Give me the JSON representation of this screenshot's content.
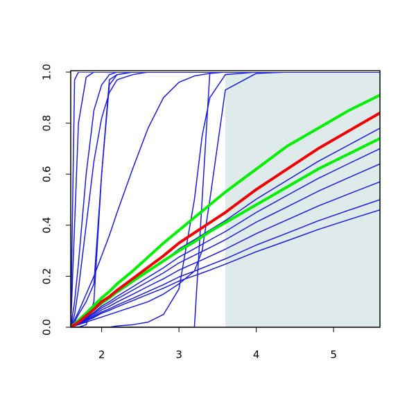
{
  "chart_data": {
    "type": "line",
    "x": [
      1.6,
      1.65,
      1.7,
      1.8,
      1.9,
      2.0,
      2.1,
      2.2,
      2.4,
      2.6,
      2.8,
      3.0,
      3.2,
      3.3,
      3.4,
      3.6,
      4.0,
      4.4,
      4.8,
      5.2,
      5.6
    ],
    "xlim": [
      1.6,
      5.6
    ],
    "xticks": [
      2,
      3,
      4,
      5
    ],
    "ylim": [
      0,
      1
    ],
    "yticks": [
      {
        "value": 0,
        "label": "0.0"
      },
      0.2,
      0.4,
      0.6,
      0.8,
      {
        "value": 1,
        "label": "1.0"
      }
    ],
    "grid": false,
    "shaded_region": {
      "x": [
        3.6,
        5.6
      ],
      "color": "#dfeaea"
    },
    "series": [
      {
        "color": "#1a1adc",
        "line_width": 1.5,
        "values": [
          0,
          0.97,
          1,
          1,
          1,
          1,
          1,
          1,
          1,
          1,
          1,
          1,
          1,
          1,
          1,
          1,
          1,
          1,
          1,
          1,
          1
        ]
      },
      {
        "color": "#1a1adc",
        "line_width": 1.5,
        "values": [
          0,
          0.4,
          0.8,
          0.98,
          1,
          1,
          1,
          1,
          1,
          1,
          1,
          1,
          1,
          1,
          1,
          1,
          1,
          1,
          1,
          1,
          1
        ]
      },
      {
        "color": "#1a1adc",
        "line_width": 1.5,
        "values": [
          0,
          0.1,
          0.25,
          0.6,
          0.85,
          0.95,
          0.99,
          1,
          1,
          1,
          1,
          1,
          1,
          1,
          1,
          1,
          1,
          1,
          1,
          1,
          1
        ]
      },
      {
        "color": "#1a1adc",
        "line_width": 1.5,
        "values": [
          0,
          0.05,
          0.15,
          0.4,
          0.65,
          0.82,
          0.92,
          0.97,
          0.99,
          1,
          1,
          1,
          1,
          1,
          1,
          1,
          1,
          1,
          1,
          1,
          1
        ]
      },
      {
        "color": "#1a1adc",
        "line_width": 1.5,
        "values": [
          0,
          0.02,
          0.05,
          0.1,
          0.17,
          0.6,
          0.97,
          0.99,
          1,
          1,
          1,
          1,
          1,
          1,
          1,
          1,
          1,
          1,
          1,
          1,
          1
        ]
      },
      {
        "color": "#1a1adc",
        "line_width": 1.5,
        "values": [
          0,
          0.03,
          0.06,
          0.13,
          0.2,
          0.28,
          0.36,
          0.45,
          0.62,
          0.78,
          0.9,
          0.96,
          0.985,
          0.99,
          0.995,
          1,
          1,
          1,
          1,
          1,
          1
        ]
      },
      {
        "color": "#1a1adc",
        "line_width": 1.5,
        "values": [
          0,
          0,
          0,
          0.01,
          0.1,
          0.6,
          0.95,
          0.99,
          1,
          1,
          1,
          1,
          1,
          1,
          1,
          1,
          1,
          1,
          1,
          1,
          1
        ]
      },
      {
        "color": "#1a1adc",
        "line_width": 1.5,
        "values": [
          0,
          0,
          0,
          0,
          0,
          0,
          0,
          0.005,
          0.01,
          0.02,
          0.05,
          0.15,
          0.5,
          0.75,
          0.9,
          0.99,
          1,
          1,
          1,
          1,
          1
        ]
      },
      {
        "color": "#1a1adc",
        "line_width": 1.5,
        "values": [
          0,
          0,
          0,
          0,
          0,
          0,
          0,
          0,
          0,
          0,
          0,
          0,
          0,
          0.5,
          1,
          1,
          1,
          1,
          1,
          1,
          1
        ]
      },
      {
        "color": "#1a1adc",
        "line_width": 1.5,
        "values": [
          0,
          0.005,
          0.01,
          0.02,
          0.03,
          0.04,
          0.05,
          0.06,
          0.08,
          0.1,
          0.13,
          0.17,
          0.22,
          0.3,
          0.5,
          0.93,
          0.995,
          1,
          1,
          1,
          1
        ]
      },
      {
        "color": "#1a1adc",
        "line_width": 1.5,
        "values": [
          0,
          0.009,
          0.019,
          0.042,
          0.065,
          0.093,
          0.112,
          0.135,
          0.176,
          0.218,
          0.26,
          0.307,
          0.343,
          0.362,
          0.381,
          0.418,
          0.502,
          0.576,
          0.65,
          0.715,
          0.78
        ]
      },
      {
        "color": "#1a1adc",
        "line_width": 1.5,
        "values": [
          0,
          0.008,
          0.017,
          0.038,
          0.058,
          0.083,
          0.1,
          0.121,
          0.158,
          0.196,
          0.233,
          0.275,
          0.308,
          0.325,
          0.342,
          0.375,
          0.45,
          0.517,
          0.583,
          0.642,
          0.7
        ]
      },
      {
        "color": "#1a1adc",
        "line_width": 1.5,
        "values": [
          0,
          0.008,
          0.015,
          0.035,
          0.053,
          0.076,
          0.092,
          0.111,
          0.145,
          0.179,
          0.213,
          0.252,
          0.282,
          0.297,
          0.312,
          0.343,
          0.412,
          0.472,
          0.533,
          0.587,
          0.64
        ]
      },
      {
        "color": "#1a1adc",
        "line_width": 1.5,
        "values": [
          0,
          0.007,
          0.014,
          0.031,
          0.047,
          0.068,
          0.082,
          0.099,
          0.129,
          0.16,
          0.19,
          0.224,
          0.251,
          0.264,
          0.278,
          0.306,
          0.367,
          0.421,
          0.475,
          0.523,
          0.57
        ]
      },
      {
        "color": "#1a1adc",
        "line_width": 1.5,
        "values": [
          0,
          0.006,
          0.012,
          0.027,
          0.042,
          0.06,
          0.072,
          0.087,
          0.113,
          0.14,
          0.167,
          0.197,
          0.22,
          0.232,
          0.244,
          0.268,
          0.322,
          0.369,
          0.417,
          0.459,
          0.5
        ]
      },
      {
        "color": "#1a1adc",
        "line_width": 1.5,
        "values": [
          0,
          0.006,
          0.011,
          0.025,
          0.038,
          0.055,
          0.066,
          0.08,
          0.104,
          0.129,
          0.153,
          0.181,
          0.202,
          0.213,
          0.224,
          0.247,
          0.296,
          0.339,
          0.383,
          0.422,
          0.46
        ]
      },
      {
        "color": "#00ee00",
        "line_width": 4,
        "values": [
          0,
          0.013,
          0.027,
          0.055,
          0.085,
          0.115,
          0.14,
          0.17,
          0.22,
          0.275,
          0.33,
          0.38,
          0.43,
          0.455,
          0.48,
          0.53,
          0.62,
          0.71,
          0.78,
          0.85,
          0.91
        ]
      },
      {
        "color": "#00ee00",
        "line_width": 4,
        "values": [
          0,
          0.01,
          0.02,
          0.045,
          0.07,
          0.095,
          0.115,
          0.14,
          0.18,
          0.22,
          0.26,
          0.3,
          0.335,
          0.355,
          0.375,
          0.41,
          0.48,
          0.55,
          0.62,
          0.68,
          0.74
        ]
      },
      {
        "color": "#ee0000",
        "line_width": 4,
        "values": [
          0,
          0.01,
          0.02,
          0.045,
          0.07,
          0.1,
          0.12,
          0.145,
          0.19,
          0.235,
          0.28,
          0.33,
          0.37,
          0.39,
          0.41,
          0.45,
          0.54,
          0.62,
          0.7,
          0.77,
          0.84
        ]
      }
    ]
  }
}
